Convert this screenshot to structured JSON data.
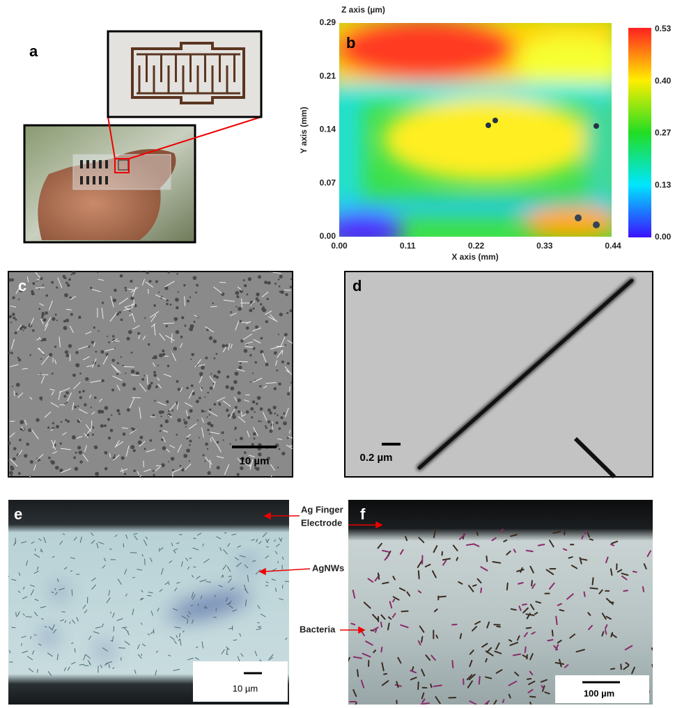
{
  "panels": {
    "a": {
      "label": "a"
    },
    "b": {
      "label": "b",
      "z_axis_label": "Z axis (µm)",
      "x_axis_label": "X axis (mm)",
      "y_axis_label": "Y axis (mm)",
      "xticks": [
        "0.00",
        "0.11",
        "0.22",
        "0.33",
        "0.44"
      ],
      "yticks": [
        "0.29",
        "0.21",
        "0.14",
        "0.07",
        "0.00"
      ],
      "colorbar_ticks": [
        "0.53",
        "0.40",
        "0.27",
        "0.13",
        "0.00"
      ]
    },
    "c": {
      "label": "c",
      "scale_bar": "10 µm"
    },
    "d": {
      "label": "d",
      "scale_bar": "0.2 µm"
    },
    "e": {
      "label": "e",
      "scale_bar": "10 µm"
    },
    "f": {
      "label": "f",
      "scale_bar": "100 µm"
    }
  },
  "annotations": {
    "electrode_line1": "Ag Finger",
    "electrode_line2": "Electrode",
    "agnws": "AgNWs",
    "bacteria": "Bacteria"
  }
}
